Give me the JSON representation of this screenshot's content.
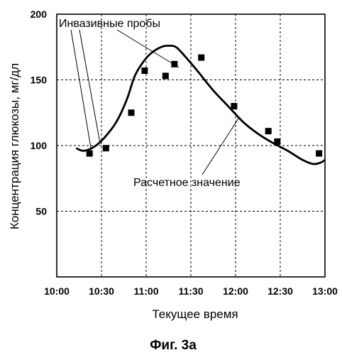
{
  "chart_data": {
    "type": "scatter",
    "xlabel": "Текущее время",
    "ylabel": "Концентрация глюкозы, мг/дл",
    "caption": "Фиг. 3а",
    "x_ticks": [
      "10:00",
      "10:30",
      "11:00",
      "11:30",
      "12:00",
      "12:30",
      "13:00"
    ],
    "y_ticks": [
      "50",
      "100",
      "150",
      "200"
    ],
    "xlim": [
      "10:00",
      "13:00"
    ],
    "ylim": [
      0,
      200
    ],
    "grid": "dashed",
    "annotations": {
      "invasive": "Инвазивные пробы",
      "calculated": "Расчетное значение"
    },
    "series": [
      {
        "kind": "points",
        "points": [
          {
            "x": "10:22",
            "y": 94
          },
          {
            "x": "10:33",
            "y": 98
          },
          {
            "x": "10:50",
            "y": 125
          },
          {
            "x": "10:59",
            "y": 157
          },
          {
            "x": "11:13",
            "y": 153
          },
          {
            "x": "11:19",
            "y": 162
          },
          {
            "x": "11:37",
            "y": 167
          },
          {
            "x": "11:59",
            "y": 130
          },
          {
            "x": "12:22",
            "y": 111
          },
          {
            "x": "12:28",
            "y": 103
          },
          {
            "x": "12:56",
            "y": 94
          }
        ]
      },
      {
        "kind": "curve",
        "points": [
          {
            "x": "10:13",
            "y": 98
          },
          {
            "x": "10:18",
            "y": 96
          },
          {
            "x": "10:25",
            "y": 99
          },
          {
            "x": "10:32",
            "y": 106
          },
          {
            "x": "10:40",
            "y": 118
          },
          {
            "x": "10:47",
            "y": 135
          },
          {
            "x": "10:52",
            "y": 152
          },
          {
            "x": "10:57",
            "y": 162
          },
          {
            "x": "11:03",
            "y": 170
          },
          {
            "x": "11:10",
            "y": 175
          },
          {
            "x": "11:15",
            "y": 176
          },
          {
            "x": "11:20",
            "y": 175
          },
          {
            "x": "11:26",
            "y": 168
          },
          {
            "x": "11:35",
            "y": 156
          },
          {
            "x": "11:45",
            "y": 142
          },
          {
            "x": "11:55",
            "y": 130
          },
          {
            "x": "12:05",
            "y": 118
          },
          {
            "x": "12:15",
            "y": 109
          },
          {
            "x": "12:25",
            "y": 102
          },
          {
            "x": "12:35",
            "y": 96
          },
          {
            "x": "12:45",
            "y": 89
          },
          {
            "x": "12:52",
            "y": 86
          },
          {
            "x": "12:57",
            "y": 87
          },
          {
            "x": "13:00",
            "y": 89
          }
        ]
      }
    ]
  }
}
